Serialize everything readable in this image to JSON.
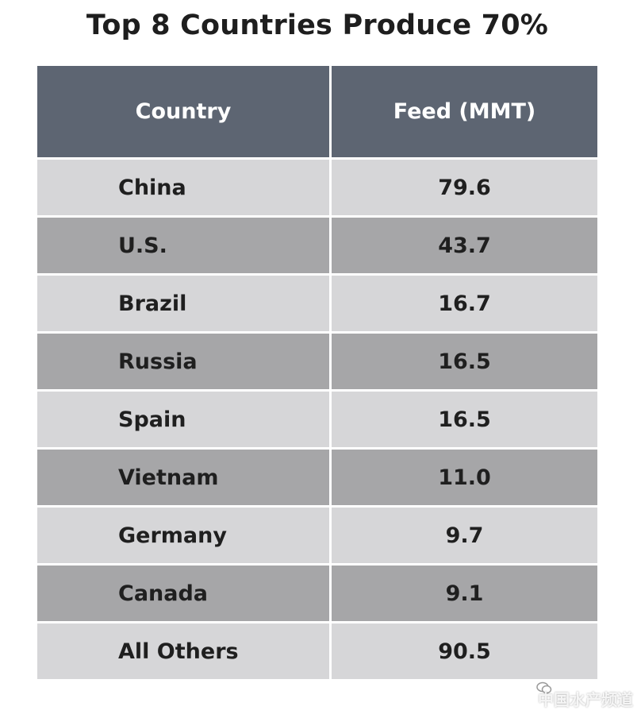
{
  "chart_data": {
    "type": "table",
    "title": "Top 8 Countries Produce 70%",
    "columns": [
      "Country",
      "Feed (MMT)"
    ],
    "rows": [
      {
        "country": "China",
        "feed": "79.6"
      },
      {
        "country": "U.S.",
        "feed": "43.7"
      },
      {
        "country": "Brazil",
        "feed": "16.7"
      },
      {
        "country": "Russia",
        "feed": "16.5"
      },
      {
        "country": "Spain",
        "feed": "16.5"
      },
      {
        "country": "Vietnam",
        "feed": "11.0"
      },
      {
        "country": "Germany",
        "feed": "9.7"
      },
      {
        "country": "Canada",
        "feed": "9.1"
      },
      {
        "country": "All Others",
        "feed": "90.5"
      }
    ]
  },
  "colors": {
    "header_bg": "#5d6572",
    "row_light": "#d6d6d8",
    "row_dark": "#a6a6a8"
  },
  "watermark": "中国水产频道"
}
